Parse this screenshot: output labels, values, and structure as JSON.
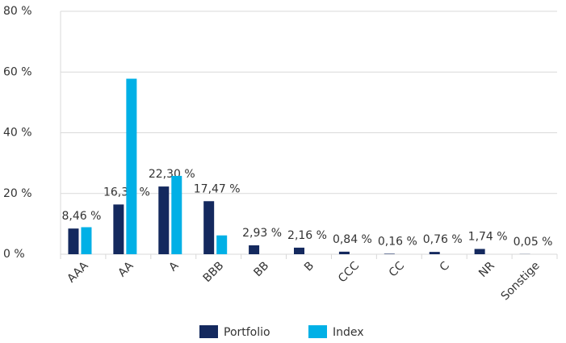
{
  "chart_data": {
    "type": "bar",
    "categories": [
      "AAA",
      "AA",
      "A",
      "BBB",
      "BB",
      "B",
      "CCC",
      "CC",
      "C",
      "NR",
      "Sonstige"
    ],
    "series": [
      {
        "name": "Portfolio",
        "color": "#14295e",
        "values": [
          8.46,
          16.38,
          22.3,
          17.47,
          2.93,
          2.16,
          0.84,
          0.16,
          0.76,
          1.74,
          0.05
        ],
        "value_labels": [
          "8,46 %",
          "16,38 %",
          "22,30 %",
          "17,47 %",
          "2,93 %",
          "2,16 %",
          "0,84 %",
          "0,16 %",
          "0,76 %",
          "1,74 %",
          "0,05 %"
        ]
      },
      {
        "name": "Index",
        "color": "#00b0e6",
        "values": [
          8.9,
          57.8,
          25.8,
          6.2,
          0,
          0,
          0,
          0,
          0,
          0,
          0
        ]
      }
    ],
    "ylim": [
      0,
      80
    ],
    "yticks": [
      {
        "value": 0,
        "label": "0 %"
      },
      {
        "value": 20,
        "label": "20 %"
      },
      {
        "value": 40,
        "label": "40 %"
      },
      {
        "value": 60,
        "label": "60 %"
      },
      {
        "value": 80,
        "label": "80 %"
      }
    ],
    "grid": true,
    "legend": "bottom"
  }
}
